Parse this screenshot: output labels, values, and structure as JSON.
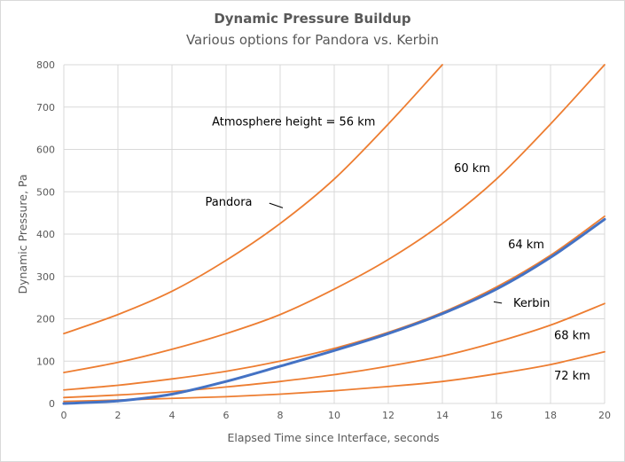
{
  "chart_data": {
    "type": "line",
    "title": "Dynamic Pressure Buildup",
    "subtitle": "Various options for Pandora vs. Kerbin",
    "xlabel": "Elapsed Time since Interface, seconds",
    "ylabel": "Dynamic Pressure, Pa",
    "xlim": [
      0,
      20
    ],
    "ylim": [
      0,
      800
    ],
    "xticks": [
      0,
      2,
      4,
      6,
      8,
      10,
      12,
      14,
      16,
      18,
      20
    ],
    "yticks": [
      0,
      100,
      200,
      300,
      400,
      500,
      600,
      700,
      800
    ],
    "grid": true,
    "colors": {
      "orange": "#ed7d31",
      "blue": "#4472c4",
      "grid": "#d9d9d9",
      "text": "#595959"
    },
    "x": [
      0,
      2,
      4,
      6,
      8,
      10,
      12,
      14,
      16,
      18,
      20
    ],
    "series": [
      {
        "color": "#ed7d31",
        "values": [
          165,
          210,
          265,
          338,
          425,
          530,
          660,
          800,
          null,
          null,
          null
        ]
      },
      {
        "color": "#ed7d31",
        "values": [
          73,
          97,
          128,
          165,
          210,
          270,
          340,
          425,
          530,
          660,
          800
        ]
      },
      {
        "color": "#ed7d31",
        "values": [
          32,
          43,
          58,
          76,
          100,
          130,
          168,
          215,
          275,
          350,
          442
        ]
      },
      {
        "color": "#ed7d31",
        "values": [
          14,
          20,
          28,
          39,
          52,
          68,
          88,
          112,
          145,
          185,
          236
        ]
      },
      {
        "color": "#ed7d31",
        "values": [
          5,
          8,
          12,
          16,
          22,
          30,
          40,
          52,
          70,
          92,
          122
        ]
      },
      {
        "name": "Kerbin",
        "color": "#4472c4",
        "values": [
          0,
          6,
          22,
          52,
          88,
          125,
          165,
          212,
          270,
          345,
          435
        ]
      }
    ],
    "annotations": [
      {
        "text": "Atmosphere height = 56 km",
        "x": 8.5,
        "y": 665
      },
      {
        "text": "60 km",
        "x": 15.1,
        "y": 555
      },
      {
        "text": "Pandora",
        "x": 6.1,
        "y": 475
      },
      {
        "text": "64 km",
        "x": 17.1,
        "y": 375
      },
      {
        "text": "Kerbin",
        "x": 17.3,
        "y": 237
      },
      {
        "text": "68 km",
        "x": 18.8,
        "y": 160
      },
      {
        "text": "72 km",
        "x": 18.8,
        "y": 65
      }
    ],
    "leaders": [
      {
        "from": [
          7.6,
          473
        ],
        "to": [
          8.1,
          462
        ]
      },
      {
        "from": [
          16.2,
          237
        ],
        "to": [
          15.9,
          240
        ]
      }
    ]
  }
}
